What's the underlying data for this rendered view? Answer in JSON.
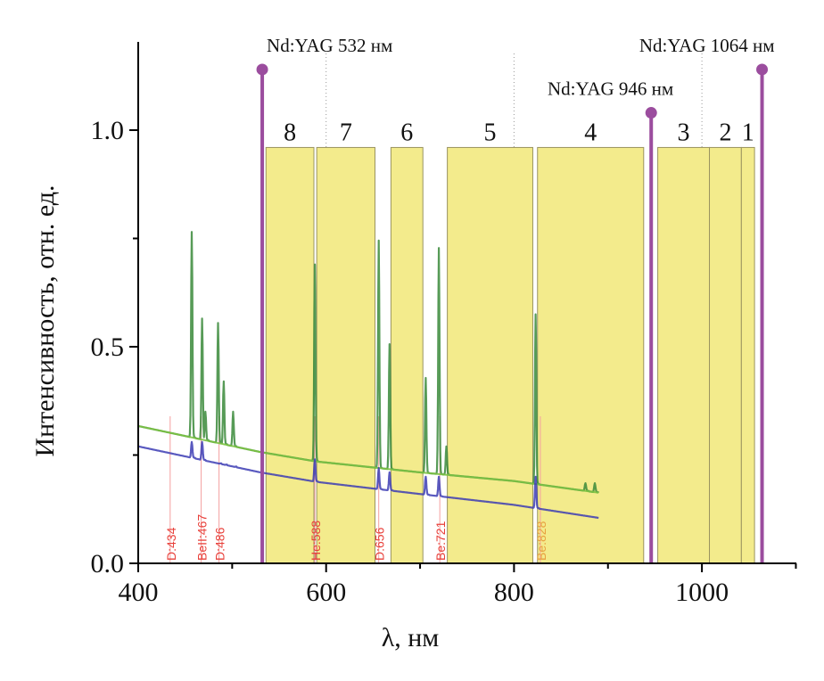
{
  "chart_data": {
    "type": "line",
    "title": "",
    "xlabel": "λ, нм",
    "ylabel": "Интенсивность, отн. ед.",
    "xlim": [
      400,
      1100
    ],
    "ylim": [
      0,
      1.2
    ],
    "xticks": [
      400,
      600,
      800,
      1000
    ],
    "xtick_labels": [
      "400",
      "600",
      "800",
      "1000"
    ],
    "xminor_ticks": [
      500,
      700,
      900,
      1100
    ],
    "yticks": [
      0.0,
      0.5,
      1.0
    ],
    "ytick_labels": [
      "0.0",
      "0.5",
      "1.0"
    ],
    "yminor_ticks": [
      0.25,
      0.75
    ],
    "grid_x_dotted": [
      600,
      800,
      1000
    ],
    "bands": [
      {
        "label": "8",
        "start": 536,
        "end": 587,
        "height": 0.96
      },
      {
        "label": "7",
        "start": 590,
        "end": 652,
        "height": 0.96
      },
      {
        "label": "6",
        "start": 669,
        "end": 703,
        "height": 0.96
      },
      {
        "label": "5",
        "start": 729,
        "end": 820,
        "height": 0.96
      },
      {
        "label": "4",
        "start": 825,
        "end": 938,
        "height": 0.96
      },
      {
        "label": "3",
        "start": 953,
        "end": 1008,
        "height": 0.96
      },
      {
        "label": "2",
        "start": 1008,
        "end": 1042,
        "height": 0.96
      },
      {
        "label": "1",
        "start": 1042,
        "end": 1056,
        "height": 0.96
      }
    ],
    "lasers": [
      {
        "label": "Nd:YAG 532 нм",
        "wavelength": 532,
        "height": 1.14
      },
      {
        "label": "Nd:YAG 946 нм",
        "wavelength": 946,
        "height": 1.04
      },
      {
        "label": "Nd:YAG 1064 нм",
        "wavelength": 1064,
        "height": 1.14
      }
    ],
    "reference_lines": [
      {
        "label": "D:434",
        "wavelength": 434
      },
      {
        "label": "BeII:467",
        "wavelength": 467
      },
      {
        "label": "D:486",
        "wavelength": 486
      },
      {
        "label": "He:588",
        "wavelength": 588
      },
      {
        "label": "D:656",
        "wavelength": 656
      },
      {
        "label": "Be:721",
        "wavelength": 721
      },
      {
        "label": "Be:828",
        "wavelength": 828
      }
    ],
    "series": [
      {
        "name": "spectrum-green",
        "color": "#3a8a3a",
        "baseline": {
          "x": [
            400,
            530,
            590,
            700,
            800,
            890
          ],
          "y": [
            0.317,
            0.257,
            0.235,
            0.21,
            0.19,
            0.163
          ]
        },
        "peaks": [
          {
            "x": 457,
            "y": 0.765
          },
          {
            "x": 468,
            "y": 0.565
          },
          {
            "x": 471.5,
            "y": 0.35
          },
          {
            "x": 485,
            "y": 0.555
          },
          {
            "x": 491,
            "y": 0.42
          },
          {
            "x": 501,
            "y": 0.35
          },
          {
            "x": 588,
            "y": 0.69
          },
          {
            "x": 656,
            "y": 0.745
          },
          {
            "x": 667.5,
            "y": 0.506
          },
          {
            "x": 706,
            "y": 0.428
          },
          {
            "x": 720,
            "y": 0.728
          },
          {
            "x": 728,
            "y": 0.27
          },
          {
            "x": 823,
            "y": 0.575
          },
          {
            "x": 876,
            "y": 0.185
          },
          {
            "x": 886,
            "y": 0.185
          }
        ]
      },
      {
        "name": "spectrum-green-light-baseline",
        "color": "#7cc242",
        "baseline": {
          "x": [
            400,
            530,
            590,
            700,
            800,
            890
          ],
          "y": [
            0.317,
            0.257,
            0.235,
            0.21,
            0.19,
            0.163
          ]
        }
      },
      {
        "name": "spectrum-blue",
        "color": "#3c3cb4",
        "baseline": {
          "x": [
            400,
            530,
            590,
            700,
            800,
            890
          ],
          "y": [
            0.27,
            0.21,
            0.188,
            0.16,
            0.135,
            0.105
          ]
        },
        "peaks": [
          {
            "x": 457,
            "y": 0.28
          },
          {
            "x": 468,
            "y": 0.28
          },
          {
            "x": 485,
            "y": 0.22
          },
          {
            "x": 491,
            "y": 0.21
          },
          {
            "x": 501,
            "y": 0.19
          },
          {
            "x": 588,
            "y": 0.24
          },
          {
            "x": 656,
            "y": 0.22
          },
          {
            "x": 667.5,
            "y": 0.21
          },
          {
            "x": 706,
            "y": 0.2
          },
          {
            "x": 720,
            "y": 0.2
          },
          {
            "x": 823,
            "y": 0.2
          }
        ]
      }
    ],
    "colors": {
      "band_fill": "#f3eb8c",
      "band_stroke": "#9a9460",
      "laser": "#9b4d9e",
      "ref_line": "#f4a0a0",
      "ref_text": "#e8403a",
      "ref_text_in_band": "#e8a040"
    }
  }
}
